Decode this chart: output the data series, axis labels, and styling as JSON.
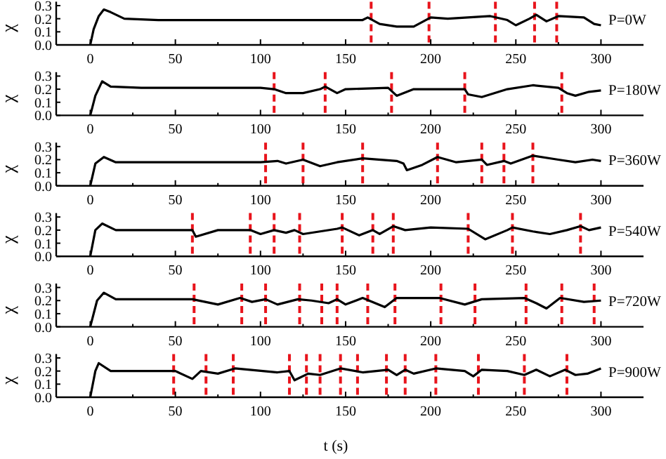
{
  "chart_data": [
    {
      "type": "line",
      "ylabel": "χ",
      "annotations": [
        "P=0W"
      ],
      "xlim": [
        -20,
        325
      ],
      "ylim": [
        0,
        0.33
      ],
      "xticks": [
        0,
        {
          "value": 25,
          "label": null
        },
        50,
        {
          "value": 75,
          "label": null
        },
        100,
        {
          "value": 125,
          "label": null
        },
        150,
        {
          "value": 175,
          "label": null
        },
        200,
        {
          "value": 225,
          "label": null
        },
        250,
        {
          "value": 275,
          "label": null
        },
        300
      ],
      "yticks": [
        {
          "value": 0,
          "label": "0.0"
        },
        {
          "value": 0.1,
          "label": "0.1"
        },
        {
          "value": 0.2,
          "label": "0.2"
        },
        {
          "value": 0.3,
          "label": "0.3"
        }
      ],
      "series": [
        {
          "color": "#000000",
          "x": [
            0,
            2,
            5,
            8,
            12,
            20,
            40,
            80,
            120,
            160,
            163,
            170,
            180,
            190,
            200,
            210,
            235,
            245,
            250,
            258,
            262,
            268,
            275,
            290,
            296,
            300
          ],
          "values": [
            0,
            0.12,
            0.22,
            0.27,
            0.25,
            0.2,
            0.19,
            0.19,
            0.19,
            0.19,
            0.21,
            0.16,
            0.14,
            0.14,
            0.21,
            0.2,
            0.22,
            0.19,
            0.15,
            0.2,
            0.23,
            0.18,
            0.22,
            0.21,
            0.16,
            0.15
          ]
        }
      ],
      "ref_lines": [
        {
          "axis": "x",
          "value": 165,
          "color": "#e8141c",
          "line_style": "dashed"
        },
        {
          "axis": "x",
          "value": 199,
          "color": "#e8141c",
          "line_style": "dashed"
        },
        {
          "axis": "x",
          "value": 238,
          "color": "#e8141c",
          "line_style": "dashed"
        },
        {
          "axis": "x",
          "value": 261,
          "color": "#e8141c",
          "line_style": "dashed"
        },
        {
          "axis": "x",
          "value": 274,
          "color": "#e8141c",
          "line_style": "dashed"
        }
      ]
    },
    {
      "type": "line",
      "ylabel": "χ",
      "annotations": [
        "P=180W"
      ],
      "xlim": [
        -20,
        325
      ],
      "ylim": [
        0,
        0.33
      ],
      "xticks": [
        0,
        {
          "value": 25,
          "label": null
        },
        50,
        {
          "value": 75,
          "label": null
        },
        100,
        {
          "value": 125,
          "label": null
        },
        150,
        {
          "value": 175,
          "label": null
        },
        200,
        {
          "value": 225,
          "label": null
        },
        250,
        {
          "value": 275,
          "label": null
        },
        300
      ],
      "yticks": [
        {
          "value": 0,
          "label": "0.0"
        },
        {
          "value": 0.1,
          "label": "0.1"
        },
        {
          "value": 0.2,
          "label": "0.2"
        },
        {
          "value": 0.3,
          "label": "0.3"
        }
      ],
      "series": [
        {
          "color": "#000000",
          "x": [
            0,
            1,
            3,
            7,
            12,
            30,
            100,
            108,
            115,
            125,
            135,
            138,
            145,
            150,
            175,
            180,
            190,
            220,
            222,
            230,
            245,
            260,
            275,
            280,
            285,
            293,
            300
          ],
          "values": [
            0,
            0.05,
            0.15,
            0.26,
            0.22,
            0.21,
            0.21,
            0.2,
            0.17,
            0.17,
            0.2,
            0.22,
            0.17,
            0.2,
            0.21,
            0.15,
            0.2,
            0.2,
            0.16,
            0.14,
            0.2,
            0.23,
            0.21,
            0.17,
            0.15,
            0.18,
            0.19
          ]
        }
      ],
      "ref_lines": [
        {
          "axis": "x",
          "value": 108,
          "color": "#e8141c",
          "line_style": "dashed"
        },
        {
          "axis": "x",
          "value": 138,
          "color": "#e8141c",
          "line_style": "dashed"
        },
        {
          "axis": "x",
          "value": 177,
          "color": "#e8141c",
          "line_style": "dashed"
        },
        {
          "axis": "x",
          "value": 220,
          "color": "#e8141c",
          "line_style": "dashed"
        },
        {
          "axis": "x",
          "value": 277,
          "color": "#e8141c",
          "line_style": "dashed"
        }
      ]
    },
    {
      "type": "line",
      "ylabel": "χ",
      "annotations": [
        "P=360W"
      ],
      "xlim": [
        -20,
        325
      ],
      "ylim": [
        0,
        0.33
      ],
      "xticks": [
        0,
        {
          "value": 25,
          "label": null
        },
        50,
        {
          "value": 75,
          "label": null
        },
        100,
        {
          "value": 125,
          "label": null
        },
        150,
        {
          "value": 175,
          "label": null
        },
        200,
        {
          "value": 225,
          "label": null
        },
        250,
        {
          "value": 275,
          "label": null
        },
        300
      ],
      "yticks": [
        {
          "value": 0,
          "label": "0.0"
        },
        {
          "value": 0.1,
          "label": "0.1"
        },
        {
          "value": 0.2,
          "label": "0.2"
        },
        {
          "value": 0.3,
          "label": "0.3"
        }
      ],
      "series": [
        {
          "color": "#000000",
          "x": [
            0,
            3,
            8,
            15,
            100,
            110,
            115,
            125,
            135,
            145,
            160,
            180,
            184,
            186,
            195,
            204,
            215,
            230,
            233,
            243,
            247,
            260,
            275,
            285,
            295,
            300
          ],
          "values": [
            0,
            0.17,
            0.22,
            0.18,
            0.18,
            0.19,
            0.17,
            0.2,
            0.15,
            0.18,
            0.21,
            0.19,
            0.17,
            0.12,
            0.16,
            0.22,
            0.18,
            0.2,
            0.16,
            0.19,
            0.17,
            0.23,
            0.2,
            0.18,
            0.2,
            0.19
          ]
        }
      ],
      "ref_lines": [
        {
          "axis": "x",
          "value": 103,
          "color": "#e8141c",
          "line_style": "dashed"
        },
        {
          "axis": "x",
          "value": 125,
          "color": "#e8141c",
          "line_style": "dashed"
        },
        {
          "axis": "x",
          "value": 160,
          "color": "#e8141c",
          "line_style": "dashed"
        },
        {
          "axis": "x",
          "value": 204,
          "color": "#e8141c",
          "line_style": "dashed"
        },
        {
          "axis": "x",
          "value": 230,
          "color": "#e8141c",
          "line_style": "dashed"
        },
        {
          "axis": "x",
          "value": 243,
          "color": "#e8141c",
          "line_style": "dashed"
        },
        {
          "axis": "x",
          "value": 260,
          "color": "#e8141c",
          "line_style": "dashed"
        }
      ]
    },
    {
      "type": "line",
      "ylabel": "χ",
      "annotations": [
        "P=540W"
      ],
      "xlim": [
        -20,
        325
      ],
      "ylim": [
        0,
        0.33
      ],
      "xticks": [
        0,
        {
          "value": 25,
          "label": null
        },
        50,
        {
          "value": 75,
          "label": null
        },
        100,
        {
          "value": 125,
          "label": null
        },
        150,
        {
          "value": 175,
          "label": null
        },
        200,
        {
          "value": 225,
          "label": null
        },
        250,
        {
          "value": 275,
          "label": null
        },
        300
      ],
      "yticks": [
        {
          "value": 0,
          "label": "0.0"
        },
        {
          "value": 0.1,
          "label": "0.1"
        },
        {
          "value": 0.2,
          "label": "0.2"
        },
        {
          "value": 0.3,
          "label": "0.3"
        }
      ],
      "series": [
        {
          "color": "#000000",
          "x": [
            0,
            3,
            7,
            15,
            60,
            62,
            75,
            94,
            100,
            108,
            115,
            120,
            125,
            145,
            148,
            158,
            166,
            170,
            178,
            185,
            200,
            222,
            232,
            245,
            248,
            260,
            270,
            280,
            288,
            293,
            300
          ],
          "values": [
            0,
            0.2,
            0.25,
            0.2,
            0.2,
            0.15,
            0.2,
            0.2,
            0.17,
            0.2,
            0.18,
            0.2,
            0.17,
            0.21,
            0.22,
            0.16,
            0.2,
            0.17,
            0.23,
            0.2,
            0.22,
            0.21,
            0.13,
            0.2,
            0.22,
            0.19,
            0.17,
            0.2,
            0.23,
            0.2,
            0.22
          ]
        }
      ],
      "ref_lines": [
        {
          "axis": "x",
          "value": 60,
          "color": "#e8141c",
          "line_style": "dashed"
        },
        {
          "axis": "x",
          "value": 94,
          "color": "#e8141c",
          "line_style": "dashed"
        },
        {
          "axis": "x",
          "value": 108,
          "color": "#e8141c",
          "line_style": "dashed"
        },
        {
          "axis": "x",
          "value": 123,
          "color": "#e8141c",
          "line_style": "dashed"
        },
        {
          "axis": "x",
          "value": 148,
          "color": "#e8141c",
          "line_style": "dashed"
        },
        {
          "axis": "x",
          "value": 166,
          "color": "#e8141c",
          "line_style": "dashed"
        },
        {
          "axis": "x",
          "value": 178,
          "color": "#e8141c",
          "line_style": "dashed"
        },
        {
          "axis": "x",
          "value": 222,
          "color": "#e8141c",
          "line_style": "dashed"
        },
        {
          "axis": "x",
          "value": 248,
          "color": "#e8141c",
          "line_style": "dashed"
        },
        {
          "axis": "x",
          "value": 288,
          "color": "#e8141c",
          "line_style": "dashed"
        }
      ]
    },
    {
      "type": "line",
      "ylabel": "χ",
      "annotations": [
        "P=720W"
      ],
      "xlim": [
        -20,
        325
      ],
      "ylim": [
        0,
        0.33
      ],
      "xticks": [
        0,
        {
          "value": 25,
          "label": null
        },
        50,
        {
          "value": 75,
          "label": null
        },
        100,
        {
          "value": 125,
          "label": null
        },
        150,
        {
          "value": 175,
          "label": null
        },
        200,
        {
          "value": 225,
          "label": null
        },
        250,
        {
          "value": 275,
          "label": null
        },
        300
      ],
      "yticks": [
        {
          "value": 0,
          "label": "0.0"
        },
        {
          "value": 0.1,
          "label": "0.1"
        },
        {
          "value": 0.2,
          "label": "0.2"
        },
        {
          "value": 0.3,
          "label": "0.3"
        }
      ],
      "series": [
        {
          "color": "#000000",
          "x": [
            0,
            4,
            8,
            15,
            60,
            75,
            88,
            95,
            103,
            110,
            122,
            130,
            140,
            145,
            150,
            160,
            173,
            180,
            205,
            220,
            230,
            255,
            262,
            268,
            276,
            290,
            300
          ],
          "values": [
            0,
            0.2,
            0.26,
            0.21,
            0.21,
            0.17,
            0.22,
            0.19,
            0.21,
            0.17,
            0.21,
            0.2,
            0.18,
            0.21,
            0.17,
            0.22,
            0.15,
            0.22,
            0.22,
            0.17,
            0.21,
            0.22,
            0.18,
            0.14,
            0.22,
            0.19,
            0.2
          ]
        }
      ],
      "ref_lines": [
        {
          "axis": "x",
          "value": 61,
          "color": "#e8141c",
          "line_style": "dashed"
        },
        {
          "axis": "x",
          "value": 89,
          "color": "#e8141c",
          "line_style": "dashed"
        },
        {
          "axis": "x",
          "value": 103,
          "color": "#e8141c",
          "line_style": "dashed"
        },
        {
          "axis": "x",
          "value": 123,
          "color": "#e8141c",
          "line_style": "dashed"
        },
        {
          "axis": "x",
          "value": 136,
          "color": "#e8141c",
          "line_style": "dashed"
        },
        {
          "axis": "x",
          "value": 145,
          "color": "#e8141c",
          "line_style": "dashed"
        },
        {
          "axis": "x",
          "value": 163,
          "color": "#e8141c",
          "line_style": "dashed"
        },
        {
          "axis": "x",
          "value": 179,
          "color": "#e8141c",
          "line_style": "dashed"
        },
        {
          "axis": "x",
          "value": 206,
          "color": "#e8141c",
          "line_style": "dashed"
        },
        {
          "axis": "x",
          "value": 226,
          "color": "#e8141c",
          "line_style": "dashed"
        },
        {
          "axis": "x",
          "value": 256,
          "color": "#e8141c",
          "line_style": "dashed"
        },
        {
          "axis": "x",
          "value": 277,
          "color": "#e8141c",
          "line_style": "dashed"
        },
        {
          "axis": "x",
          "value": 296,
          "color": "#e8141c",
          "line_style": "dashed"
        }
      ]
    },
    {
      "type": "line",
      "ylabel": "χ",
      "xlabel": "t (s)",
      "annotations": [
        "P=900W"
      ],
      "xlim": [
        -20,
        325
      ],
      "ylim": [
        0,
        0.33
      ],
      "xticks": [
        0,
        {
          "value": 25,
          "label": null
        },
        50,
        {
          "value": 75,
          "label": null
        },
        100,
        {
          "value": 125,
          "label": null
        },
        150,
        {
          "value": 175,
          "label": null
        },
        200,
        {
          "value": 225,
          "label": null
        },
        250,
        {
          "value": 275,
          "label": null
        },
        300
      ],
      "yticks": [
        {
          "value": 0,
          "label": "0.0"
        },
        {
          "value": 0.1,
          "label": "0.1"
        },
        {
          "value": 0.2,
          "label": "0.2"
        },
        {
          "value": 0.3,
          "label": "0.3"
        }
      ],
      "series": [
        {
          "color": "#000000",
          "x": [
            0,
            3,
            5,
            12,
            50,
            60,
            65,
            75,
            85,
            110,
            117,
            120,
            128,
            135,
            147,
            160,
            175,
            180,
            185,
            190,
            203,
            220,
            225,
            230,
            245,
            255,
            262,
            270,
            279,
            285,
            292,
            300
          ],
          "values": [
            0,
            0.2,
            0.26,
            0.2,
            0.2,
            0.14,
            0.2,
            0.18,
            0.22,
            0.19,
            0.2,
            0.13,
            0.18,
            0.17,
            0.22,
            0.19,
            0.21,
            0.17,
            0.21,
            0.18,
            0.22,
            0.2,
            0.16,
            0.21,
            0.2,
            0.17,
            0.21,
            0.16,
            0.21,
            0.17,
            0.18,
            0.22
          ]
        }
      ],
      "ref_lines": [
        {
          "axis": "x",
          "value": 49,
          "color": "#e8141c",
          "line_style": "dashed"
        },
        {
          "axis": "x",
          "value": 68,
          "color": "#e8141c",
          "line_style": "dashed"
        },
        {
          "axis": "x",
          "value": 84,
          "color": "#e8141c",
          "line_style": "dashed"
        },
        {
          "axis": "x",
          "value": 117,
          "color": "#e8141c",
          "line_style": "dashed"
        },
        {
          "axis": "x",
          "value": 127,
          "color": "#e8141c",
          "line_style": "dashed"
        },
        {
          "axis": "x",
          "value": 135,
          "color": "#e8141c",
          "line_style": "dashed"
        },
        {
          "axis": "x",
          "value": 147,
          "color": "#e8141c",
          "line_style": "dashed"
        },
        {
          "axis": "x",
          "value": 157,
          "color": "#e8141c",
          "line_style": "dashed"
        },
        {
          "axis": "x",
          "value": 174,
          "color": "#e8141c",
          "line_style": "dashed"
        },
        {
          "axis": "x",
          "value": 185,
          "color": "#e8141c",
          "line_style": "dashed"
        },
        {
          "axis": "x",
          "value": 203,
          "color": "#e8141c",
          "line_style": "dashed"
        },
        {
          "axis": "x",
          "value": 228,
          "color": "#e8141c",
          "line_style": "dashed"
        },
        {
          "axis": "x",
          "value": 255,
          "color": "#e8141c",
          "line_style": "dashed"
        },
        {
          "axis": "x",
          "value": 280,
          "color": "#e8141c",
          "line_style": "dashed"
        }
      ]
    }
  ]
}
